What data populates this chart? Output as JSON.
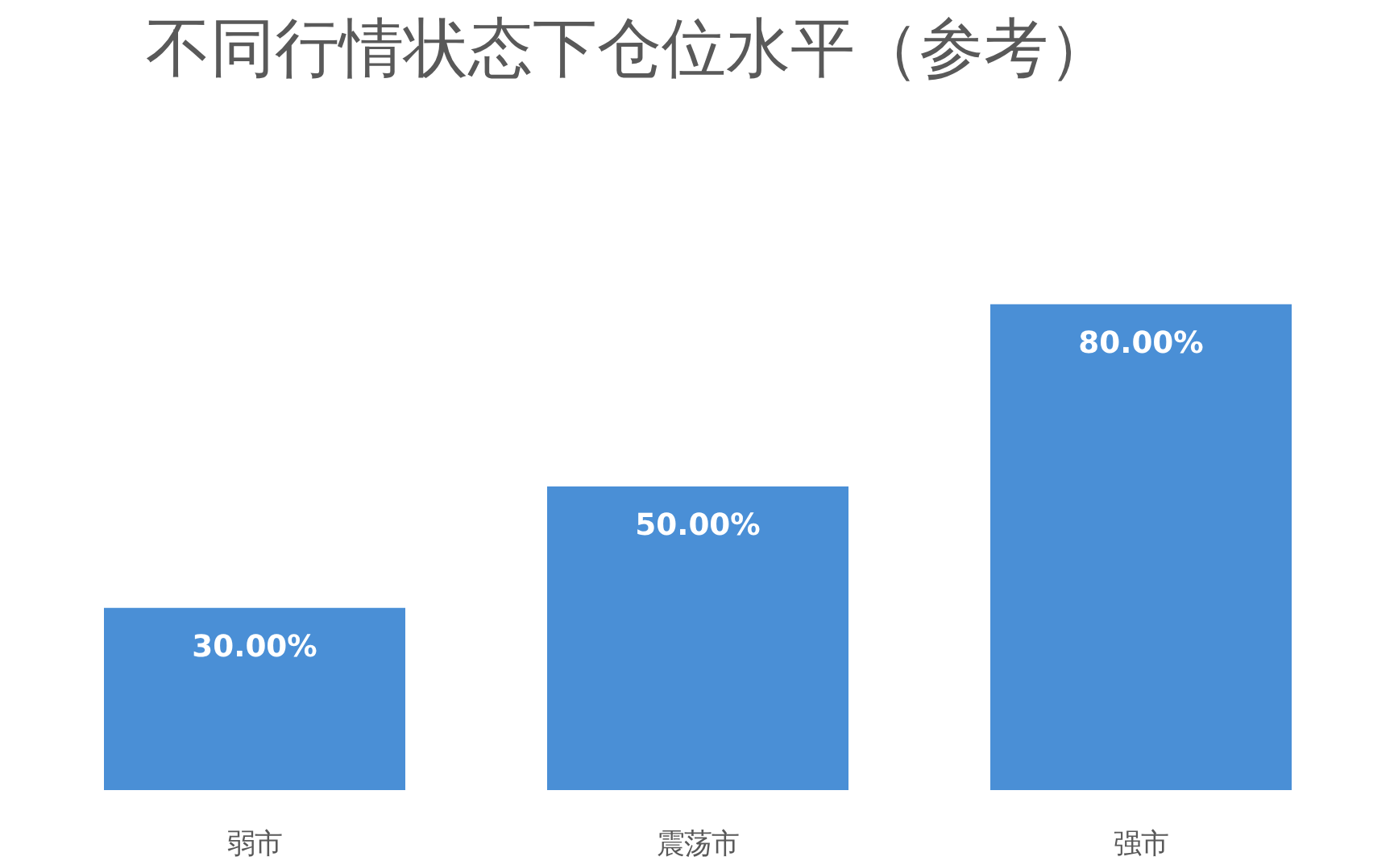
{
  "chart_data": {
    "type": "bar",
    "title": "不同行情状态下仓位水平（参考）",
    "categories": [
      "弱市",
      "震荡市",
      "强市"
    ],
    "values": [
      30,
      50,
      80
    ],
    "value_labels": [
      "30.00%",
      "50.00%",
      "80.00%"
    ],
    "color": "#4a8fd6"
  }
}
